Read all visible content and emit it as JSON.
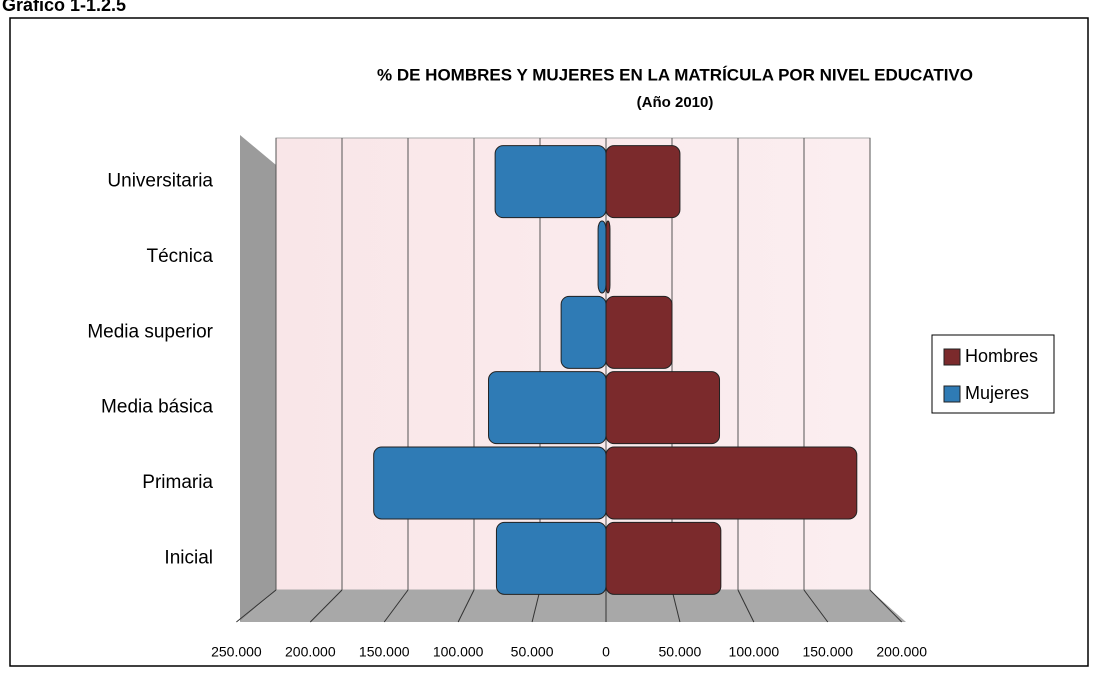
{
  "chart_data": {
    "type": "bar",
    "caption": "Gráfico 1-1.2.5",
    "title": "% DE HOMBRES Y MUJERES EN LA MATRÍCULA POR NIVEL EDUCATIVO",
    "subtitle": "(Año 2010)",
    "categories": [
      "Universitaria",
      "Técnica",
      "Media superior",
      "Media básica",
      "Primaria",
      "Inicial"
    ],
    "series": [
      {
        "name": "Hombres",
        "color": "#7b2a2c",
        "values": [
          56000,
          3000,
          50000,
          86000,
          190000,
          87000
        ]
      },
      {
        "name": "Mujeres",
        "color": "#2f7bb5",
        "values": [
          -84000,
          -6000,
          -34000,
          -89000,
          -176000,
          -83000
        ]
      }
    ],
    "xlim": [
      -250000,
      200000
    ],
    "xticks": [
      {
        "value": -250000,
        "label": "250.000"
      },
      {
        "value": -200000,
        "label": "200.000"
      },
      {
        "value": -150000,
        "label": "150.000"
      },
      {
        "value": -100000,
        "label": "100.000"
      },
      {
        "value": -50000,
        "label": "50.000"
      },
      0,
      {
        "value": 50000,
        "label": "50.000"
      },
      {
        "value": 100000,
        "label": "100.000"
      },
      {
        "value": 150000,
        "label": "150.000"
      },
      {
        "value": 200000,
        "label": "200.000"
      }
    ],
    "grid": true,
    "legend": "right"
  }
}
